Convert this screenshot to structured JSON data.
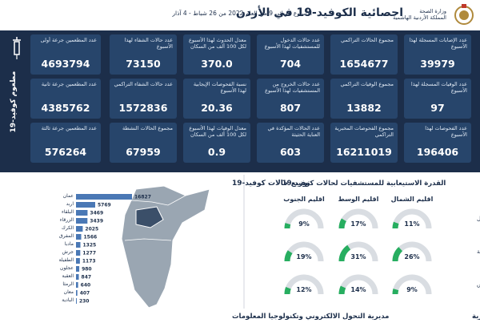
{
  "header": {
    "title": "احصائية الكوفيد-19 في الأردن",
    "subtitle": "الأسبوع الوبائي  9 من العام 2022 من  26 شباط - 4 آذار",
    "ministry": "وزارة الصحة",
    "kingdom": "المملكة الأردنية الهاشمية"
  },
  "stats": [
    {
      "label": "عدد الإصابات المسجلة لهذا الأسبوع",
      "value": "39979"
    },
    {
      "label": "مجموع الحالات التراكمي",
      "value": "1654677"
    },
    {
      "label": "عدد حالات الدخول للمستشفيات لهذا الأسبوع",
      "value": "704"
    },
    {
      "label": "معدل الحدوث لهذا الأسبوع لكل 100 ألف من السكان",
      "value": "370.0"
    },
    {
      "label": "عدد حالات الشفاء لهذا الأسبوع",
      "value": "73150"
    },
    {
      "label": "عدد الوفيات المسجلة لهذا الأسبوع",
      "value": "97"
    },
    {
      "label": "مجموع الوفيات التراكمي",
      "value": "13882"
    },
    {
      "label": "عدد حالات الخروج من المستشفيات لهذا الأسبوع",
      "value": "807"
    },
    {
      "label": "نسبة الفحوصات الإيجابية لهذا الأسبوع",
      "value": "20.36"
    },
    {
      "label": "عدد حالات الشفاء التراكمي",
      "value": "1572836"
    },
    {
      "label": "عدد الفحوصات لهذا الأسبوع",
      "value": "196406"
    },
    {
      "label": "مجموع الفحوصات المخبرية التراكمي",
      "value": "16211019"
    },
    {
      "label": "عدد الحالات المؤكدة في العناية الحثيثة",
      "value": "603"
    },
    {
      "label": "معدل الوفيات لهذا الأسبوع لكل 100 ألف من السكان",
      "value": "0.9"
    },
    {
      "label": "مجموع الحالات النشطة",
      "value": "67959"
    }
  ],
  "vaccine": {
    "title": "مطعوم كوفيد-19",
    "cards": [
      {
        "label": "عدد المطعمين جرعة أولى",
        "value": "4693794"
      },
      {
        "label": "عدد المطعمين جرعة ثانية",
        "value": "4385762"
      },
      {
        "label": "عدد المطعمين جرعة ثالثة",
        "value": "576264"
      }
    ]
  },
  "distribution": {
    "title": "توزيع حالات كوفيد-19",
    "governorates": [
      "عمان",
      "اربد",
      "البلقاء",
      "الزرقاء",
      "الكرك",
      "المفرق",
      "مادبا",
      "جرش",
      "الطفيلة",
      "عجلون",
      "العقبة",
      "الرمثا",
      "معان",
      "البادية"
    ],
    "cases": [
      16827,
      5769,
      3469,
      3439,
      2025,
      1566,
      1325,
      1277,
      1173,
      980,
      847,
      640,
      407,
      230
    ]
  },
  "capacity": {
    "title": "القدرة الاستيعابية للمستشفيات لحالات كوفيد-19",
    "regions": [
      "اقليم الشمال",
      "اقليم الوسط",
      "اقليم الجنوب"
    ],
    "rows": [
      {
        "label": "نسبة اشغال اسرة العزل",
        "values": [
          {
            "value": 11,
            "label": "11%"
          },
          {
            "value": 17,
            "label": "17%"
          },
          {
            "value": 9,
            "label": "9%"
          }
        ]
      },
      {
        "label": "نسبة اشغال اسرة العناية الحثيثة",
        "values": [
          {
            "value": 26,
            "label": "26%"
          },
          {
            "value": 31,
            "label": "31%"
          },
          {
            "value": 19,
            "label": "19%"
          }
        ]
      },
      {
        "label": "نسبة اشغال اجهزة التنفس",
        "values": [
          {
            "value": 9,
            "label": "9%"
          },
          {
            "value": 14,
            "label": "14%"
          },
          {
            "value": 12,
            "label": "12%"
          }
        ]
      }
    ]
  },
  "footer": {
    "left": "مديرية التحول الالكتروني وتكنولوجيا المعلومات",
    "right": "مديرية الأمراض السارية"
  }
}
